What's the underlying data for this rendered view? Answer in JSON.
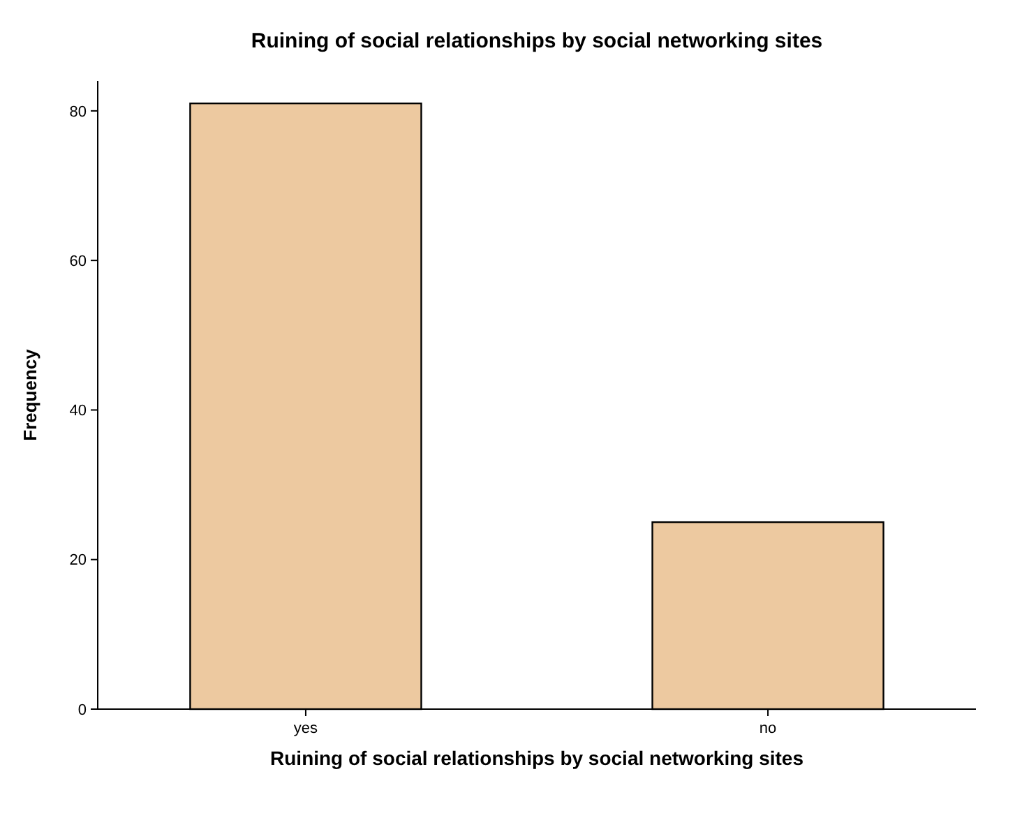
{
  "chart_data": {
    "type": "bar",
    "title": "Ruining of social relationships by social networking sites",
    "xlabel": "Ruining of social relationships by social networking sites",
    "ylabel": "Frequency",
    "categories": [
      "yes",
      "no"
    ],
    "values": [
      81,
      25
    ],
    "color": "#edc9a0",
    "ylim": [
      0,
      84
    ],
    "yticks": [
      0,
      20,
      40,
      60,
      80
    ],
    "grid": false
  }
}
